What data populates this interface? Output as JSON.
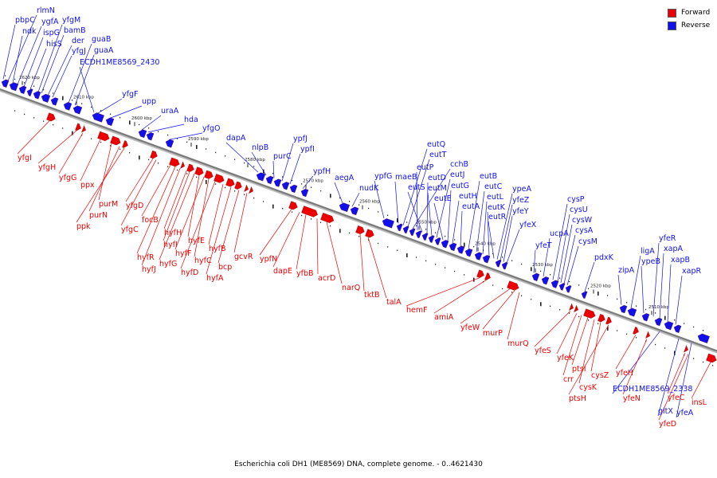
{
  "caption": "Escherichia coli DH1 (ME8569) DNA, complete genome. - 0..4621430",
  "legend": [
    {
      "label": "Forward",
      "color": "#ee0000"
    },
    {
      "label": "Reverse",
      "color": "#1010ee"
    }
  ],
  "colors": {
    "forward": "#ee0000",
    "reverse": "#1010ee",
    "backbone": "#7a7a7a"
  },
  "scale_labels": [
    "2620 kbp",
    "2610 kbp",
    "2600 kbp",
    "2590 kbp",
    "2580 kbp",
    "2570 kbp",
    "2560 kbp",
    "2550 kbp",
    "2540 kbp",
    "2530 kbp",
    "2520 kbp",
    "2510 kbp"
  ],
  "reverse_genes": [
    "rlmN",
    "pbpC",
    "ndk",
    "ygfA",
    "ispG",
    "hisS",
    "yfgM",
    "bamB",
    "der",
    "yfgJ",
    "guaB",
    "guaA",
    "ECDH1ME8569_2430",
    "yfgF",
    "upp",
    "uraA",
    "hda",
    "yfgO",
    "dapA",
    "nlpB",
    "purC",
    "ypfJ",
    "ypfI",
    "ypfH",
    "aegA",
    "nudK",
    "ypfG",
    "maeB",
    "eutQ",
    "eutT",
    "cchB",
    "eutP",
    "eutS",
    "eutD",
    "eutM",
    "eutJ",
    "eutE",
    "eutG",
    "eutH",
    "eutA",
    "eutB",
    "eutC",
    "eutL",
    "eutK",
    "eutR",
    "ypeA",
    "yfeZ",
    "yfeY",
    "yfeX",
    "yfeT",
    "ucpA",
    "cysP",
    "cysU",
    "cysW",
    "cysA",
    "cysM",
    "pdxK",
    "zipA",
    "ligA",
    "ypeB",
    "yfeR",
    "xapA",
    "xapB",
    "xapR",
    "ECDH1ME8569_2338",
    "gltX",
    "yfeA"
  ],
  "forward_genes": [
    "yfgI",
    "yfgH",
    "yfgG",
    "ppx",
    "purM",
    "purN",
    "ppk",
    "yfgD",
    "yfgC",
    "focB",
    "hyfR",
    "hyfJ",
    "hyfH",
    "hyfI",
    "hyfG",
    "hyfE",
    "hyfF",
    "hyfC",
    "hyfD",
    "hyfB",
    "hyfA",
    "bcp",
    "gcvR",
    "ypfN",
    "dapE",
    "yfbB",
    "acrD",
    "narQ",
    "tktB",
    "talA",
    "hemF",
    "amiA",
    "yfeW",
    "murP",
    "murQ",
    "yfeS",
    "yfeK",
    "crr",
    "ptsI",
    "cysK",
    "cysZ",
    "ptsH",
    "yfeH",
    "yfeN",
    "yfeC",
    "yfeD",
    "insL"
  ]
}
